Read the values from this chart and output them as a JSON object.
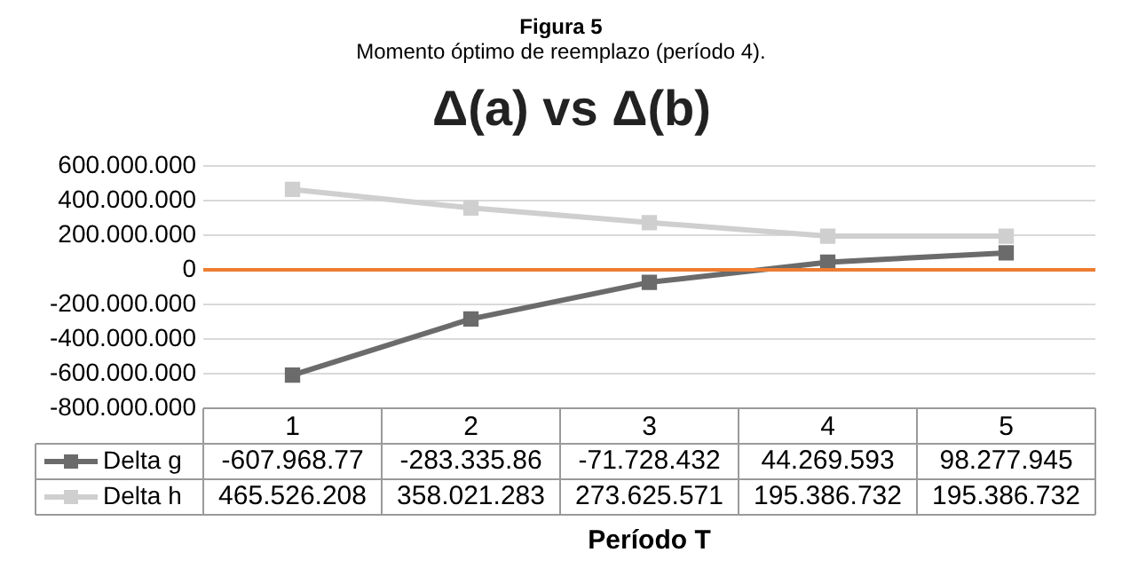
{
  "chart_data": {
    "type": "line",
    "title": "Δ(a) vs Δ(b)",
    "subtitle": "Figura 5",
    "annotations": [
      "Momento óptimo de reemplazo (período 4)."
    ],
    "xlabel": "Período T",
    "categories": [
      "1",
      "2",
      "3",
      "4",
      "5"
    ],
    "series": [
      {
        "name": "Delta g",
        "color": "#6b6b6b",
        "values": [
          -607968770,
          -283335860,
          -71728432,
          44269593,
          98277945
        ],
        "value_labels": [
          "-607.968.77",
          "-283.335.86",
          "-71.728.432",
          "44.269.593",
          "98.277.945"
        ]
      },
      {
        "name": "Delta h",
        "color": "#cfcfcf",
        "values": [
          465526208,
          358021283,
          273625571,
          195386732,
          195386732
        ],
        "value_labels": [
          "465.526.208",
          "358.021.283",
          "273.625.571",
          "195.386.732",
          "195.386.732"
        ]
      }
    ],
    "ylim": [
      -800000000,
      600000000
    ],
    "yticks": [
      {
        "value": 600000000,
        "label": "600.000.000"
      },
      {
        "value": 400000000,
        "label": "400.000.000"
      },
      {
        "value": 200000000,
        "label": "200.000.000"
      },
      0,
      {
        "value": -200000000,
        "label": "-200.000.000"
      },
      {
        "value": -400000000,
        "label": "-400.000.000"
      },
      {
        "value": -600000000,
        "label": "-600.000.000"
      },
      {
        "value": -800000000,
        "label": "-800.000.000"
      }
    ],
    "ref_lines": [
      {
        "axis": "y",
        "value": 0,
        "color": "#ed7d31"
      }
    ],
    "grid": "y",
    "legend": "bottom",
    "marker": "square",
    "line_style": "solid"
  }
}
